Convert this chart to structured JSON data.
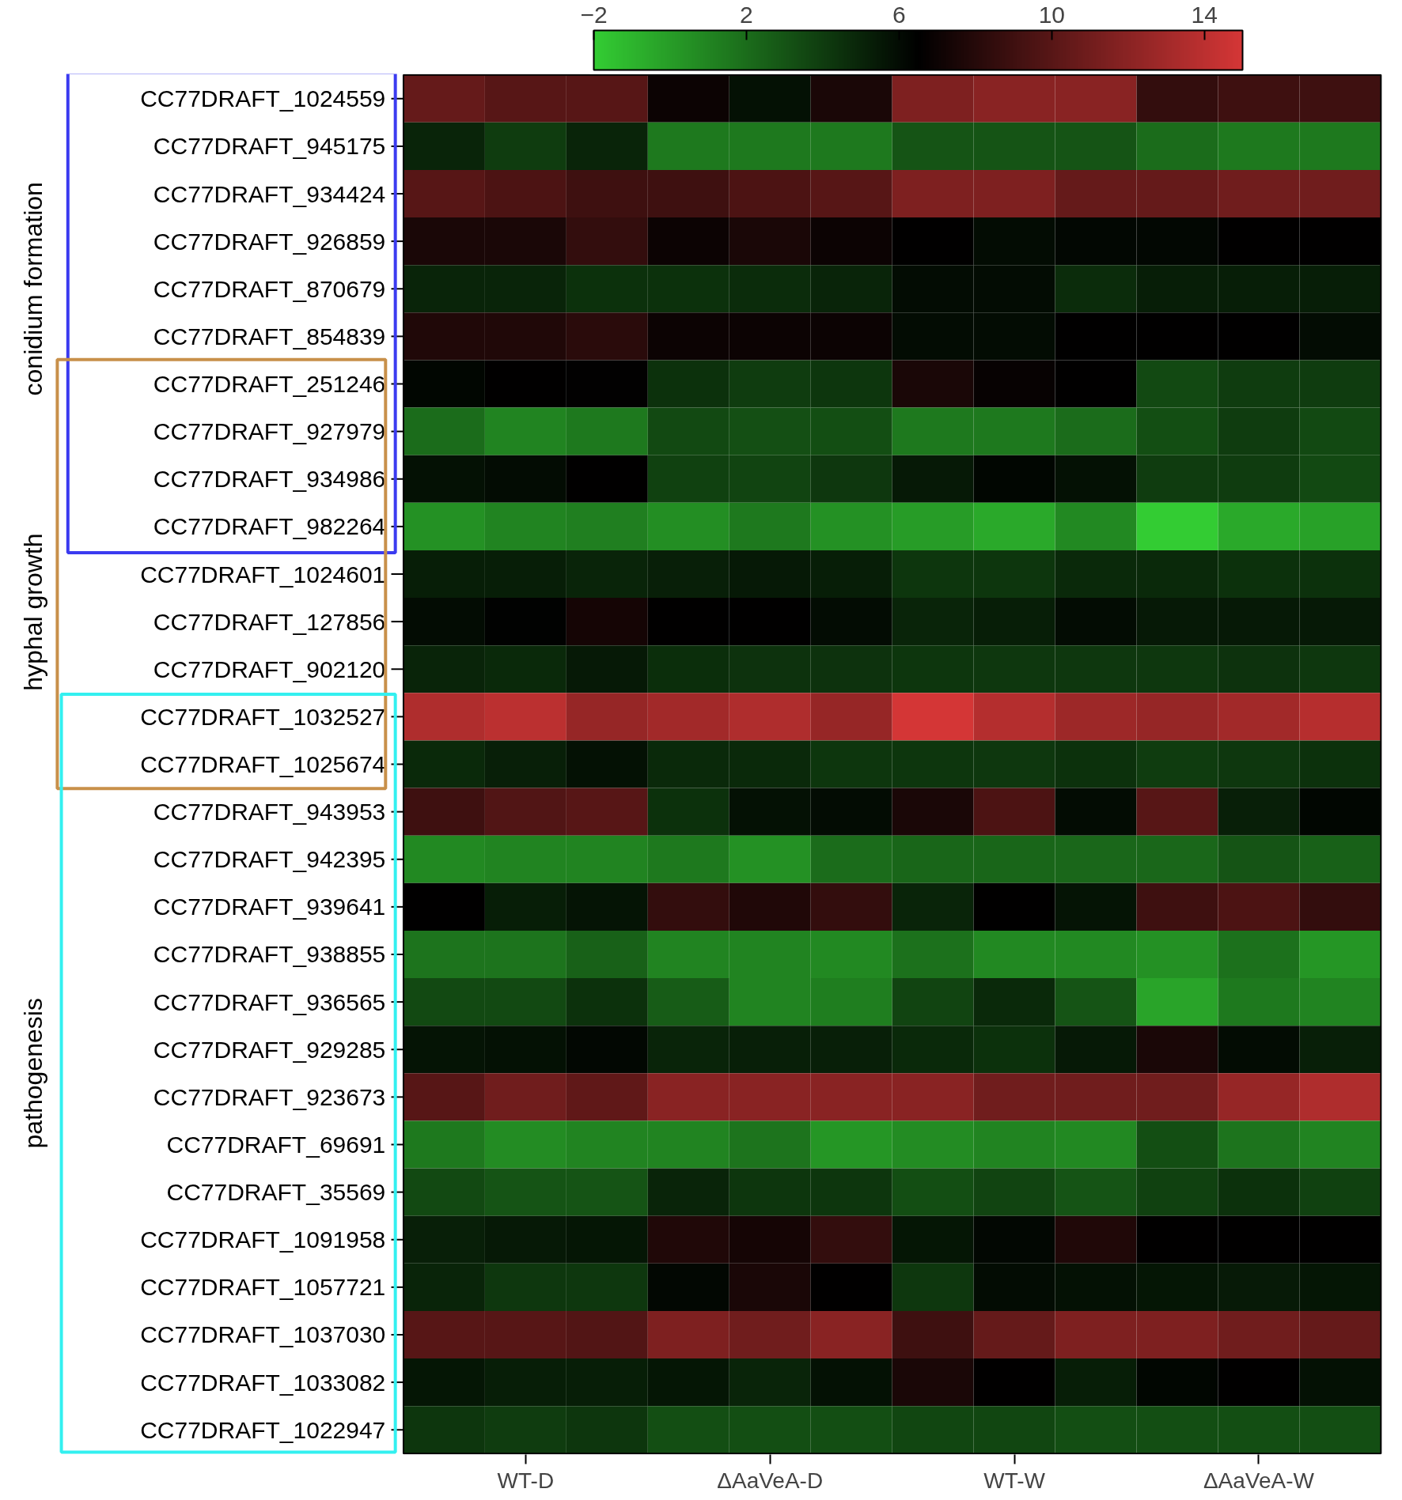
{
  "chart_data": {
    "type": "heatmap",
    "categories": [
      null,
      "WT-D",
      null,
      null,
      "ΔAaVeA-D",
      null,
      null,
      "WT-W",
      null,
      null,
      "ΔAaVeA-W",
      null
    ],
    "y_categories": [
      "CC77DRAFT_1024559",
      "CC77DRAFT_945175",
      "CC77DRAFT_934424",
      "CC77DRAFT_926859",
      "CC77DRAFT_870679",
      "CC77DRAFT_854839",
      "CC77DRAFT_251246",
      "CC77DRAFT_927979",
      "CC77DRAFT_934986",
      "CC77DRAFT_982264",
      "CC77DRAFT_1024601",
      "CC77DRAFT_127856",
      "CC77DRAFT_902120",
      "CC77DRAFT_1032527",
      "CC77DRAFT_1025674",
      "CC77DRAFT_943953",
      "CC77DRAFT_942395",
      "CC77DRAFT_939641",
      "CC77DRAFT_938855",
      "CC77DRAFT_936565",
      "CC77DRAFT_929285",
      "CC77DRAFT_923673",
      "CC77DRAFT_69691",
      "CC77DRAFT_35569",
      "CC77DRAFT_1091958",
      "CC77DRAFT_1057721",
      "CC77DRAFT_1037030",
      "CC77DRAFT_1033082",
      "CC77DRAFT_1022947"
    ],
    "cells": [
      [
        10.5,
        10,
        10,
        7,
        5.8,
        7.5,
        11.5,
        12,
        12,
        8.5,
        9,
        9
      ],
      [
        5,
        4,
        5,
        1.5,
        1.5,
        1.5,
        3,
        3,
        3,
        2,
        1.5,
        1.5
      ],
      [
        10,
        9.5,
        9,
        9,
        9.5,
        10,
        11.5,
        11.5,
        10.5,
        10.5,
        11,
        11
      ],
      [
        7.5,
        7.5,
        8.5,
        7,
        7.5,
        7,
        6.5,
        6,
        6.2,
        6.2,
        6.5,
        6.5
      ],
      [
        5,
        5,
        4.5,
        4.5,
        4.7,
        5,
        6,
        6,
        4.7,
        5.3,
        5.3,
        5.3
      ],
      [
        7.8,
        7.8,
        8.2,
        7,
        7,
        7,
        6,
        6,
        6.5,
        6.5,
        6.5,
        6
      ],
      [
        6.3,
        6.5,
        6.6,
        4.5,
        4,
        4.3,
        7.5,
        6.8,
        6.5,
        3.5,
        4,
        4
      ],
      [
        2,
        1,
        1.5,
        3.5,
        3.2,
        3.3,
        1.5,
        1.5,
        2,
        3.3,
        4,
        3.5
      ],
      [
        5.8,
        6,
        6.5,
        3.8,
        3.7,
        4.2,
        5.5,
        6.3,
        5.8,
        4,
        4,
        3.5
      ],
      [
        0.5,
        1,
        1.2,
        0.6,
        1.5,
        0.5,
        0,
        -0.5,
        0.8,
        -2,
        -0.5,
        -0.2
      ],
      [
        5.3,
        5.3,
        5,
        5.2,
        5.5,
        5.3,
        4.3,
        4.3,
        4.8,
        4.8,
        4.5,
        4.5
      ],
      [
        6,
        6.4,
        7.3,
        6.5,
        6.5,
        6,
        5,
        5.3,
        6,
        5.5,
        5.5,
        5.5
      ],
      [
        5,
        4.8,
        5.5,
        4.6,
        4.4,
        4.4,
        4.3,
        4.2,
        4.2,
        4.2,
        4.4,
        4.2
      ],
      [
        13.5,
        14,
        12.5,
        13,
        13.5,
        12.5,
        15,
        13.7,
        12.8,
        12.5,
        13,
        13.8
      ],
      [
        4.8,
        5.2,
        5.8,
        4.8,
        4.8,
        4.3,
        4.3,
        4.2,
        4.5,
        4,
        4.2,
        4.5
      ],
      [
        9,
        9.7,
        10,
        4.5,
        5.8,
        6,
        7.5,
        9.5,
        6,
        10,
        5.2,
        6.3
      ],
      [
        0.8,
        1,
        1,
        1.5,
        0.5,
        2,
        2.3,
        2.3,
        2.2,
        2.2,
        3,
        2.5
      ],
      [
        6.5,
        5.3,
        5.7,
        8.5,
        7.8,
        8.5,
        5,
        6.5,
        5.7,
        9,
        9.5,
        8.5
      ],
      [
        1.7,
        1.7,
        2.5,
        1,
        1,
        0.8,
        1.8,
        0.8,
        0.8,
        0.5,
        1.8,
        0.3
      ],
      [
        3.5,
        3.5,
        4.5,
        2.7,
        1,
        1.3,
        3.7,
        4.8,
        3,
        -0.3,
        1.5,
        1
      ],
      [
        5.7,
        5.8,
        6.2,
        5,
        5.2,
        5.2,
        4.8,
        4.5,
        5.5,
        7.5,
        6,
        5.2
      ],
      [
        10,
        11,
        10.3,
        12,
        12,
        12,
        12,
        11,
        11,
        11,
        12.5,
        13.5
      ],
      [
        1.5,
        0.7,
        1,
        1,
        1.7,
        0.3,
        0.7,
        1,
        0.8,
        3.3,
        1.7,
        1
      ],
      [
        3.5,
        3,
        3,
        5,
        4.3,
        4.3,
        3.3,
        3.7,
        3,
        3.8,
        4.5,
        3.8
      ],
      [
        5.2,
        5.5,
        5.6,
        7.8,
        7.3,
        8.5,
        5.6,
        6.2,
        7.8,
        6.5,
        6.5,
        6.5
      ],
      [
        5,
        4.2,
        4.2,
        6.2,
        7.5,
        6.5,
        4.2,
        6,
        5.8,
        5.6,
        5.4,
        5.6
      ],
      [
        10,
        10,
        9.8,
        11.5,
        11,
        12,
        9,
        10.5,
        11.5,
        11.5,
        11,
        10.5
      ],
      [
        5.6,
        5.3,
        5.3,
        5.6,
        5,
        5.8,
        7.5,
        6.5,
        5.3,
        6.3,
        6.5,
        5.8
      ],
      [
        4.3,
        4,
        4.3,
        3.3,
        3.3,
        3.3,
        3.6,
        3.6,
        3.3,
        3.3,
        3.3,
        3.3
      ]
    ],
    "clim": [
      -2,
      15
    ],
    "cticks": [
      -2,
      2,
      6,
      10,
      14
    ],
    "annotations": [
      "conidium formation",
      "hyphal growth",
      "pathogenesis"
    ]
  }
}
